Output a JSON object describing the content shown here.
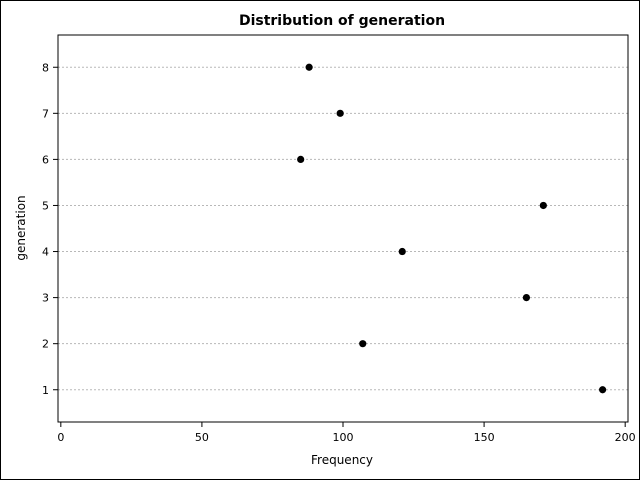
{
  "chart_data": {
    "type": "scatter",
    "title": "Distribution of generation",
    "xlabel": "Frequency",
    "ylabel": "generation",
    "xlim": [
      -1,
      201
    ],
    "ylim": [
      0.3,
      8.7
    ],
    "xticks": [
      0,
      50,
      100,
      150,
      200
    ],
    "yticks": [
      1,
      2,
      3,
      4,
      5,
      6,
      7,
      8
    ],
    "grid": "horizontal dashed",
    "points": [
      {
        "x": 192,
        "y": 1
      },
      {
        "x": 107,
        "y": 2
      },
      {
        "x": 165,
        "y": 3
      },
      {
        "x": 121,
        "y": 4
      },
      {
        "x": 171,
        "y": 5
      },
      {
        "x": 85,
        "y": 6
      },
      {
        "x": 99,
        "y": 7
      },
      {
        "x": 88,
        "y": 8
      }
    ],
    "colors": {
      "marker": "#000000",
      "grid": "#b8b8b8",
      "axis": "#000000"
    }
  }
}
